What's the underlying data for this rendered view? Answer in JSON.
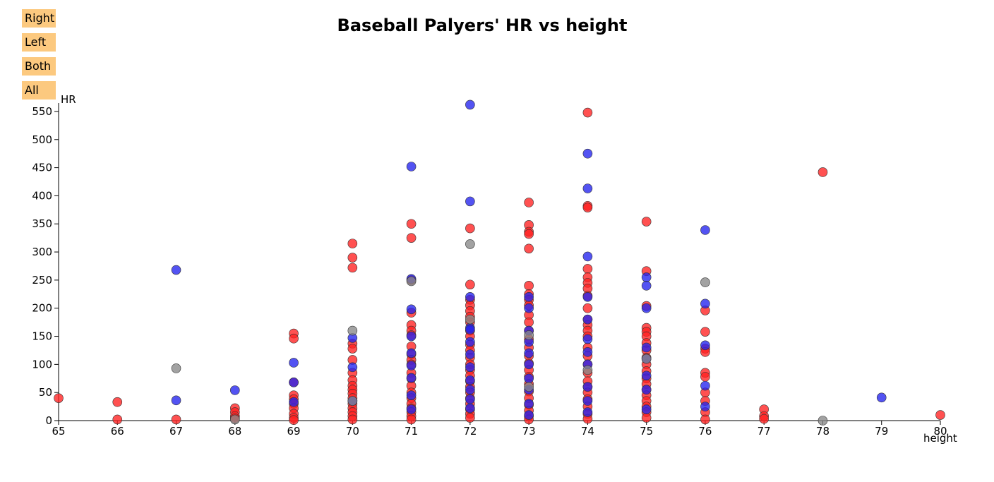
{
  "buttons": {
    "right": "Right",
    "left": "Left",
    "both": "Both",
    "all": "All"
  },
  "colors": {
    "R": "#ff2020",
    "L": "#2222ee",
    "B": "#888888",
    "button_bg": "#fcc97f"
  },
  "chart_data": {
    "type": "scatter",
    "title": "Baseball Palyers' HR vs height",
    "xlabel": "height",
    "ylabel": "HR",
    "xlim": [
      65,
      80
    ],
    "ylim": [
      0,
      565
    ],
    "x_ticks": [
      65,
      66,
      67,
      68,
      69,
      70,
      71,
      72,
      73,
      74,
      75,
      76,
      77,
      78,
      79,
      80
    ],
    "y_ticks": [
      0,
      50,
      100,
      150,
      200,
      250,
      300,
      350,
      400,
      450,
      500,
      550
    ],
    "grid": false,
    "legend": "none",
    "series": [
      {
        "hand": "R",
        "points": [
          [
            65,
            40
          ],
          [
            66,
            33
          ],
          [
            66,
            2
          ],
          [
            67,
            2
          ],
          [
            68,
            22
          ],
          [
            68,
            15
          ],
          [
            68,
            8
          ],
          [
            68,
            4
          ],
          [
            69,
            155
          ],
          [
            69,
            146
          ],
          [
            69,
            68
          ],
          [
            69,
            45
          ],
          [
            69,
            38
          ],
          [
            69,
            30
          ],
          [
            69,
            22
          ],
          [
            69,
            12
          ],
          [
            69,
            5
          ],
          [
            69,
            1
          ],
          [
            70,
            315
          ],
          [
            70,
            290
          ],
          [
            70,
            272
          ],
          [
            70,
            137
          ],
          [
            70,
            128
          ],
          [
            70,
            108
          ],
          [
            70,
            85
          ],
          [
            70,
            72
          ],
          [
            70,
            62
          ],
          [
            70,
            55
          ],
          [
            70,
            48
          ],
          [
            70,
            40
          ],
          [
            70,
            30
          ],
          [
            70,
            22
          ],
          [
            70,
            15
          ],
          [
            70,
            8
          ],
          [
            70,
            2
          ],
          [
            71,
            350
          ],
          [
            71,
            325
          ],
          [
            71,
            250
          ],
          [
            71,
            192
          ],
          [
            71,
            170
          ],
          [
            71,
            160
          ],
          [
            71,
            152
          ],
          [
            71,
            132
          ],
          [
            71,
            118
          ],
          [
            71,
            108
          ],
          [
            71,
            100
          ],
          [
            71,
            85
          ],
          [
            71,
            75
          ],
          [
            71,
            62
          ],
          [
            71,
            50
          ],
          [
            71,
            40
          ],
          [
            71,
            30
          ],
          [
            71,
            22
          ],
          [
            71,
            15
          ],
          [
            71,
            8
          ],
          [
            71,
            2
          ],
          [
            72,
            342
          ],
          [
            72,
            242
          ],
          [
            72,
            215
          ],
          [
            72,
            205
          ],
          [
            72,
            195
          ],
          [
            72,
            185
          ],
          [
            72,
            175
          ],
          [
            72,
            160
          ],
          [
            72,
            150
          ],
          [
            72,
            135
          ],
          [
            72,
            125
          ],
          [
            72,
            112
          ],
          [
            72,
            100
          ],
          [
            72,
            90
          ],
          [
            72,
            80
          ],
          [
            72,
            70
          ],
          [
            72,
            60
          ],
          [
            72,
            50
          ],
          [
            72,
            40
          ],
          [
            72,
            30
          ],
          [
            72,
            20
          ],
          [
            72,
            12
          ],
          [
            72,
            5
          ],
          [
            73,
            388
          ],
          [
            73,
            348
          ],
          [
            73,
            336
          ],
          [
            73,
            332
          ],
          [
            73,
            306
          ],
          [
            73,
            240
          ],
          [
            73,
            225
          ],
          [
            73,
            215
          ],
          [
            73,
            205
          ],
          [
            73,
            188
          ],
          [
            73,
            175
          ],
          [
            73,
            160
          ],
          [
            73,
            145
          ],
          [
            73,
            130
          ],
          [
            73,
            115
          ],
          [
            73,
            102
          ],
          [
            73,
            90
          ],
          [
            73,
            78
          ],
          [
            73,
            65
          ],
          [
            73,
            52
          ],
          [
            73,
            40
          ],
          [
            73,
            28
          ],
          [
            73,
            18
          ],
          [
            73,
            8
          ],
          [
            73,
            2
          ],
          [
            74,
            548
          ],
          [
            74,
            382
          ],
          [
            74,
            379
          ],
          [
            74,
            270
          ],
          [
            74,
            255
          ],
          [
            74,
            245
          ],
          [
            74,
            235
          ],
          [
            74,
            222
          ],
          [
            74,
            200
          ],
          [
            74,
            180
          ],
          [
            74,
            170
          ],
          [
            74,
            160
          ],
          [
            74,
            150
          ],
          [
            74,
            130
          ],
          [
            74,
            115
          ],
          [
            74,
            100
          ],
          [
            74,
            85
          ],
          [
            74,
            70
          ],
          [
            74,
            60
          ],
          [
            74,
            50
          ],
          [
            74,
            38
          ],
          [
            74,
            25
          ],
          [
            74,
            12
          ],
          [
            74,
            3
          ],
          [
            75,
            354
          ],
          [
            75,
            266
          ],
          [
            75,
            204
          ],
          [
            75,
            165
          ],
          [
            75,
            158
          ],
          [
            75,
            150
          ],
          [
            75,
            138
          ],
          [
            75,
            125
          ],
          [
            75,
            112
          ],
          [
            75,
            100
          ],
          [
            75,
            88
          ],
          [
            75,
            75
          ],
          [
            75,
            65
          ],
          [
            75,
            55
          ],
          [
            75,
            45
          ],
          [
            75,
            35
          ],
          [
            75,
            25
          ],
          [
            75,
            15
          ],
          [
            75,
            5
          ],
          [
            76,
            196
          ],
          [
            76,
            158
          ],
          [
            76,
            128
          ],
          [
            76,
            122
          ],
          [
            76,
            85
          ],
          [
            76,
            78
          ],
          [
            76,
            50
          ],
          [
            76,
            35
          ],
          [
            76,
            15
          ],
          [
            76,
            2
          ],
          [
            77,
            20
          ],
          [
            77,
            8
          ],
          [
            77,
            3
          ],
          [
            78,
            442
          ],
          [
            80,
            10
          ]
        ]
      },
      {
        "hand": "L",
        "points": [
          [
            67,
            268
          ],
          [
            67,
            36
          ],
          [
            68,
            54
          ],
          [
            69,
            103
          ],
          [
            69,
            68
          ],
          [
            69,
            33
          ],
          [
            70,
            147
          ],
          [
            70,
            95
          ],
          [
            70,
            35
          ],
          [
            71,
            452
          ],
          [
            71,
            252
          ],
          [
            71,
            198
          ],
          [
            71,
            150
          ],
          [
            71,
            120
          ],
          [
            71,
            98
          ],
          [
            71,
            76
          ],
          [
            71,
            45
          ],
          [
            71,
            20
          ],
          [
            72,
            562
          ],
          [
            72,
            390
          ],
          [
            72,
            220
          ],
          [
            72,
            165
          ],
          [
            72,
            162
          ],
          [
            72,
            140
          ],
          [
            72,
            118
          ],
          [
            72,
            95
          ],
          [
            72,
            72
          ],
          [
            72,
            55
          ],
          [
            72,
            38
          ],
          [
            72,
            22
          ],
          [
            73,
            220
          ],
          [
            73,
            200
          ],
          [
            73,
            160
          ],
          [
            73,
            140
          ],
          [
            73,
            120
          ],
          [
            73,
            100
          ],
          [
            73,
            75
          ],
          [
            73,
            55
          ],
          [
            73,
            30
          ],
          [
            73,
            10
          ],
          [
            74,
            475
          ],
          [
            74,
            413
          ],
          [
            74,
            292
          ],
          [
            74,
            220
          ],
          [
            74,
            180
          ],
          [
            74,
            145
          ],
          [
            74,
            122
          ],
          [
            74,
            100
          ],
          [
            74,
            60
          ],
          [
            74,
            35
          ],
          [
            74,
            15
          ],
          [
            75,
            255
          ],
          [
            75,
            240
          ],
          [
            75,
            200
          ],
          [
            75,
            130
          ],
          [
            75,
            110
          ],
          [
            75,
            80
          ],
          [
            75,
            55
          ],
          [
            75,
            20
          ],
          [
            76,
            339
          ],
          [
            76,
            208
          ],
          [
            76,
            134
          ],
          [
            76,
            62
          ],
          [
            76,
            25
          ],
          [
            79,
            41
          ]
        ]
      },
      {
        "hand": "B",
        "points": [
          [
            67,
            93
          ],
          [
            68,
            2
          ],
          [
            70,
            160
          ],
          [
            70,
            35
          ],
          [
            71,
            248
          ],
          [
            72,
            314
          ],
          [
            72,
            180
          ],
          [
            73,
            152
          ],
          [
            73,
            60
          ],
          [
            74,
            90
          ],
          [
            75,
            110
          ],
          [
            76,
            246
          ],
          [
            78,
            0
          ]
        ]
      }
    ]
  }
}
